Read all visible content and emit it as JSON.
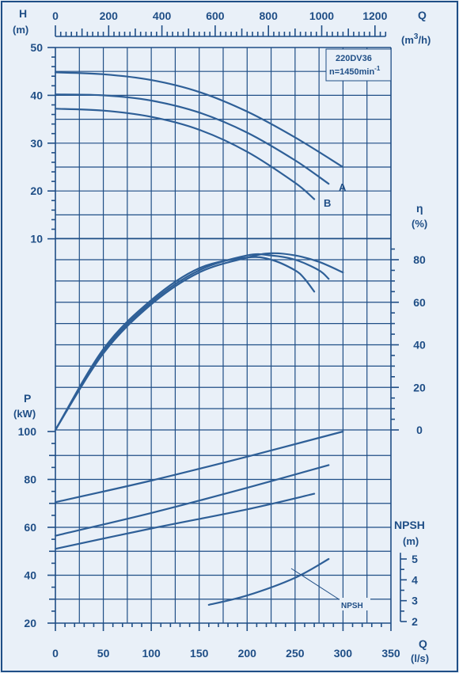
{
  "chart_data": {
    "type": "line",
    "model_label": "220DV36",
    "speed_label": "n=1450min",
    "speed_sup": "-1",
    "units": {
      "H": "H",
      "H_unit": "(m)",
      "Q_top": "Q",
      "Q_top_unit_a": "(m",
      "Q_top_unit_sup": "3",
      "Q_top_unit_b": "/h)",
      "Q_bottom": "Q",
      "Q_bottom_unit": "(l/s)",
      "eta": "η",
      "eta_unit": "(%)",
      "P": "P",
      "P_unit": "(kW)",
      "NPSH": "NPSH",
      "NPSH_unit": "(m)"
    },
    "x_bottom_ticks": [
      "0",
      "50",
      "100",
      "150",
      "200",
      "250",
      "300",
      "350"
    ],
    "x_top_ticks": [
      "0",
      "200",
      "400",
      "600",
      "800",
      "1000",
      "1200"
    ],
    "H_ticks": [
      "10",
      "20",
      "30",
      "40",
      "50"
    ],
    "eta_ticks": [
      "0",
      "20",
      "40",
      "60",
      "80"
    ],
    "P_ticks": [
      "20",
      "40",
      "60",
      "80",
      "100"
    ],
    "NPSH_ticks": [
      "2",
      "3",
      "4",
      "5"
    ],
    "curve_labels": {
      "A": "A",
      "B": "B",
      "NPSH": "NPSH"
    },
    "head_curves": [
      {
        "label": "A",
        "x": [
          0,
          50,
          100,
          150,
          200,
          250,
          300
        ],
        "y": [
          44.8,
          44.4,
          43.2,
          40.7,
          36.6,
          31.2,
          25.0
        ]
      },
      {
        "label": "",
        "x": [
          0,
          50,
          100,
          150,
          200,
          250,
          285
        ],
        "y": [
          40.2,
          40.0,
          38.9,
          36.4,
          32.2,
          26.4,
          21.5
        ]
      },
      {
        "label": "B",
        "x": [
          0,
          50,
          100,
          150,
          200,
          250,
          270
        ],
        "y": [
          37.2,
          36.8,
          35.5,
          32.8,
          28.2,
          21.7,
          18.3
        ]
      }
    ],
    "efficiency_curves": [
      {
        "x": [
          0,
          50,
          100,
          150,
          200,
          225,
          250,
          275,
          300
        ],
        "y": [
          0,
          36,
          59,
          74,
          81,
          83,
          82,
          79,
          74
        ]
      },
      {
        "x": [
          0,
          50,
          100,
          150,
          200,
          225,
          250,
          275,
          285
        ],
        "y": [
          0,
          37,
          60,
          75,
          82,
          82,
          80,
          75,
          71
        ]
      },
      {
        "x": [
          0,
          50,
          100,
          150,
          200,
          225,
          250,
          260,
          270
        ],
        "y": [
          0,
          38,
          61,
          76,
          81,
          80,
          75,
          71,
          65
        ]
      }
    ],
    "power_curves": [
      {
        "x": [
          0,
          100,
          200,
          300
        ],
        "y": [
          70.5,
          79.5,
          89.5,
          100
        ]
      },
      {
        "x": [
          0,
          100,
          200,
          285
        ],
        "y": [
          56.5,
          66.0,
          76.5,
          86.0
        ]
      },
      {
        "x": [
          0,
          100,
          200,
          270
        ],
        "y": [
          51.0,
          59.5,
          67.5,
          74.0
        ]
      }
    ],
    "npsh_curve": {
      "x": [
        160,
        200,
        250,
        285
      ],
      "y": [
        2.8,
        3.25,
        4.1,
        5.0
      ]
    },
    "xlim": [
      0,
      350
    ],
    "H_ylim": [
      0,
      50
    ],
    "eta_ylim": [
      0,
      90
    ],
    "P_ylim": [
      20,
      100
    ],
    "NPSH_ylim": [
      2,
      5.5
    ],
    "grid": true
  }
}
